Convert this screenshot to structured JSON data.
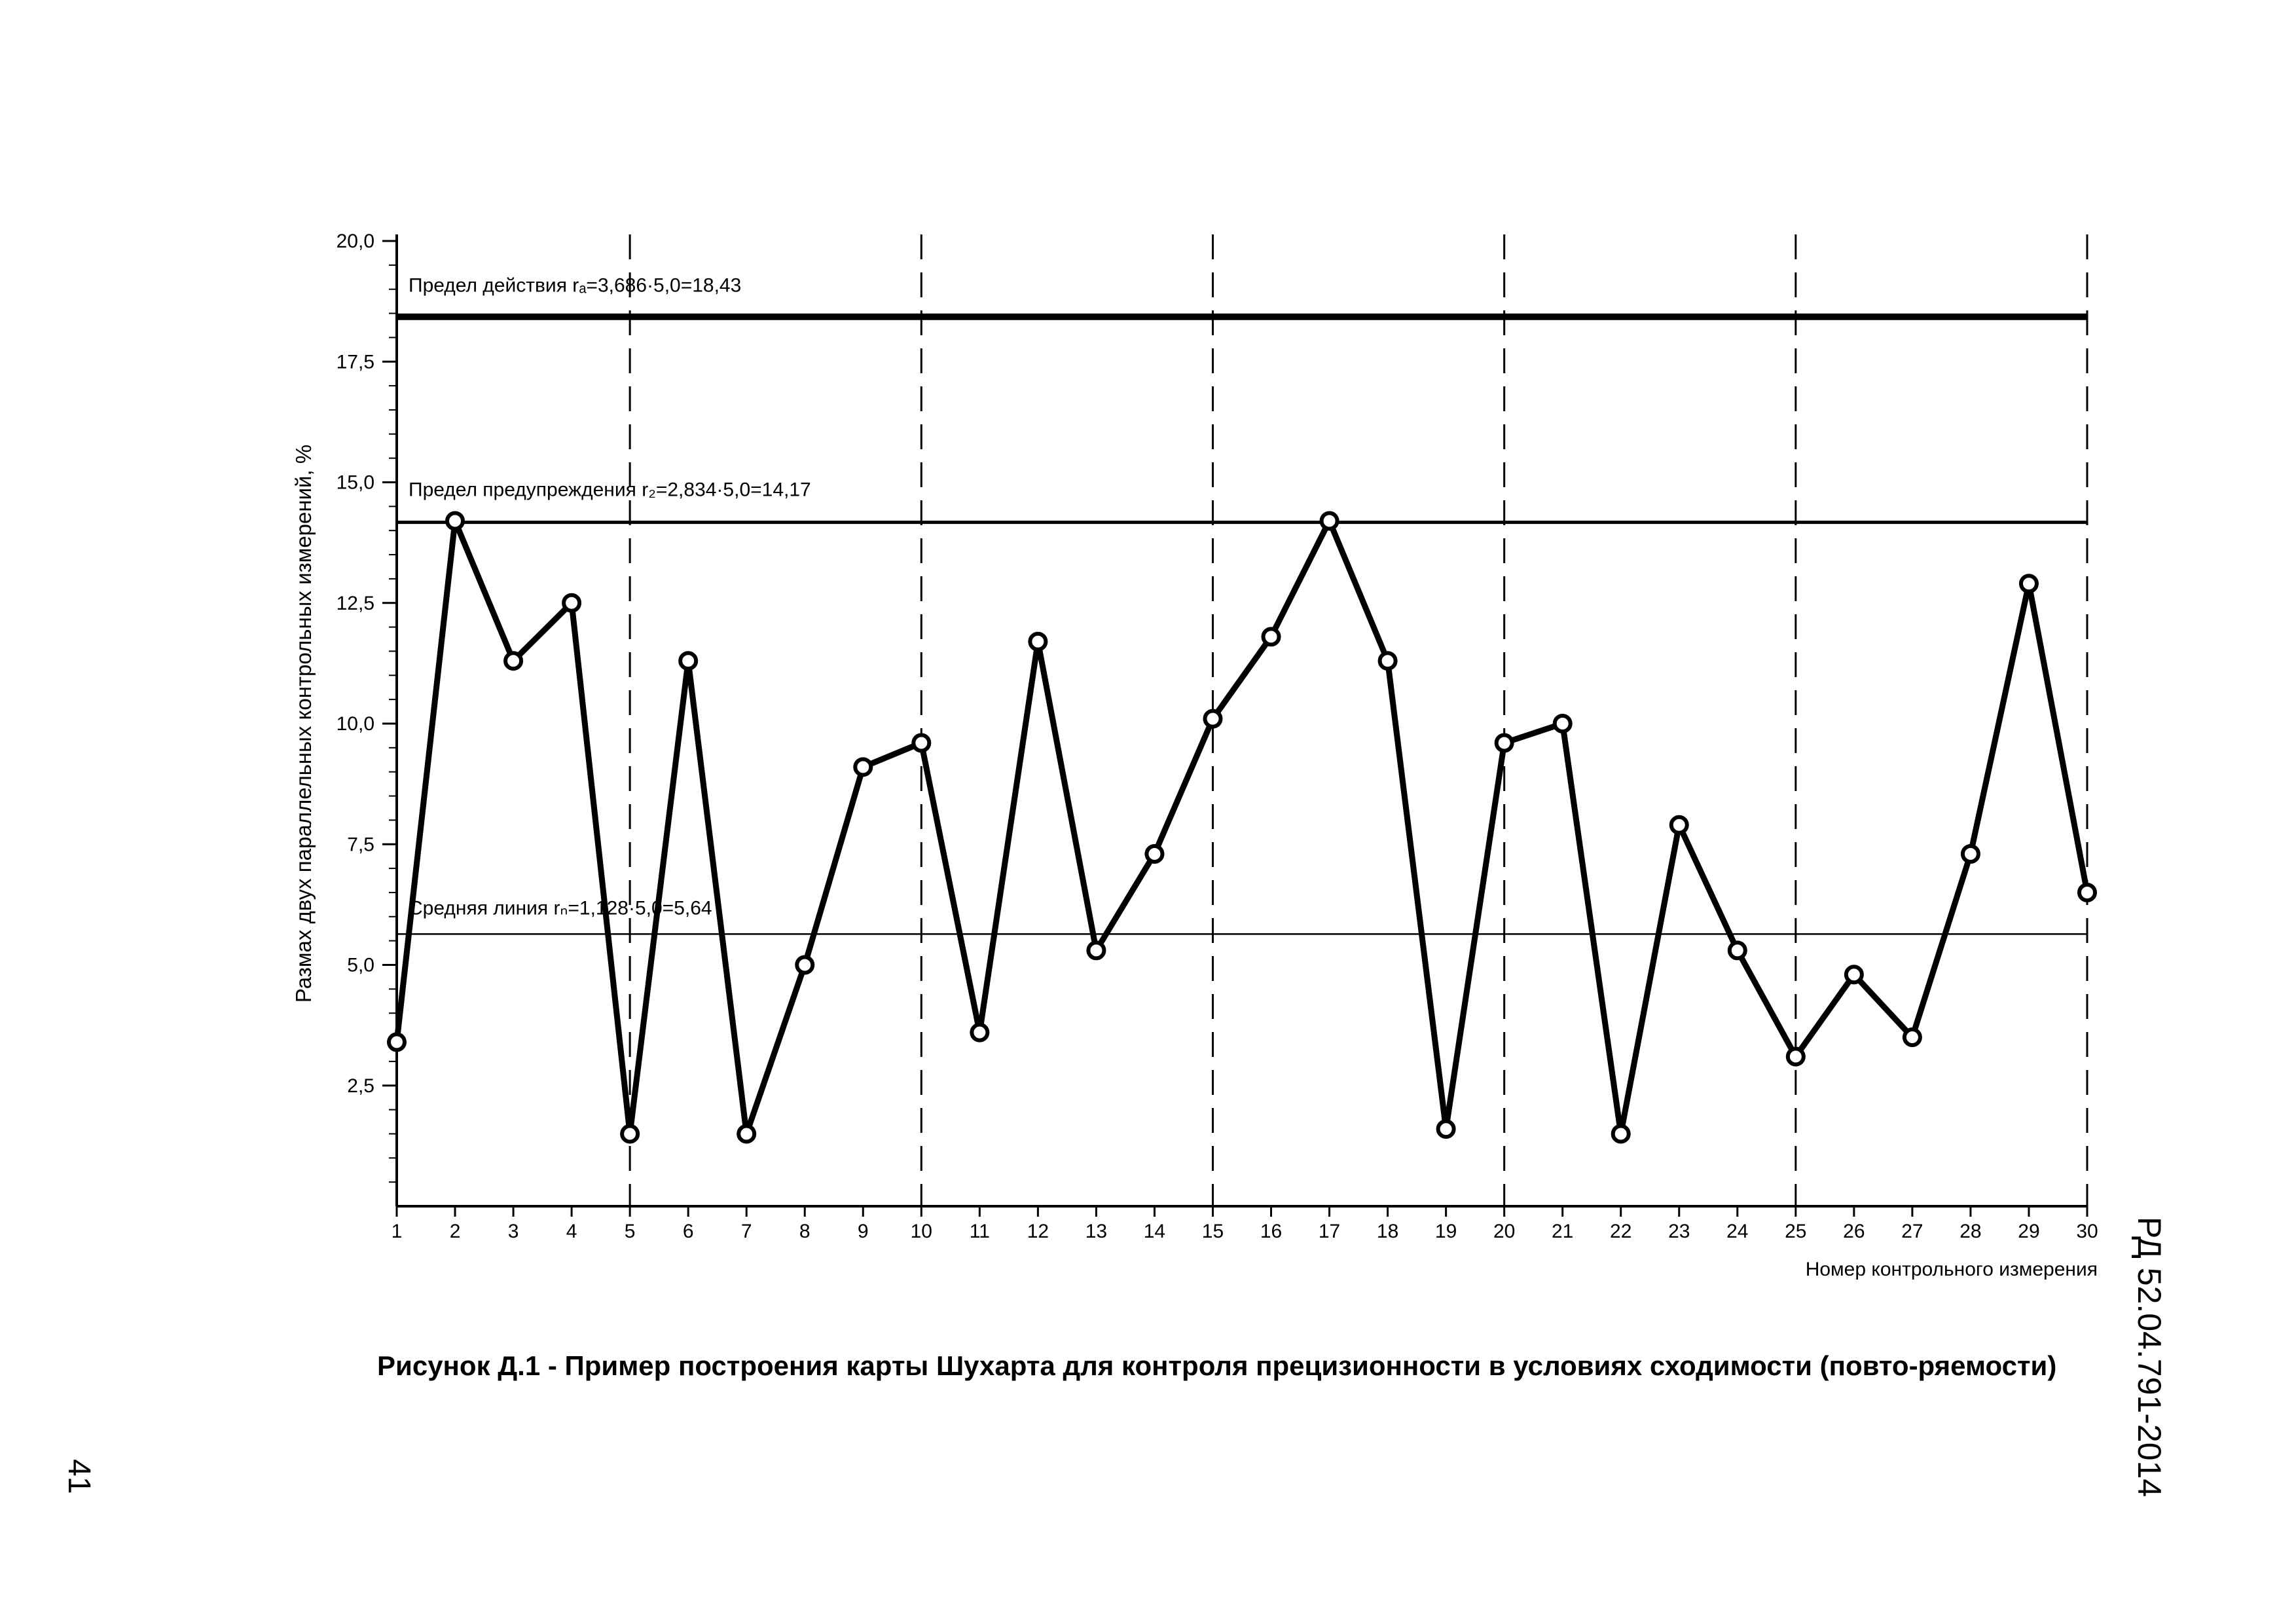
{
  "chart_data": {
    "type": "line",
    "ylabel": "Размах двух параллельных контрольных измерений, %",
    "xlabel": "Номер контрольного измерения",
    "ylim": [
      0,
      20
    ],
    "xlim": [
      1,
      30
    ],
    "y_ticks": [
      "2,5",
      "5,0",
      "7,5",
      "10,0",
      "12,5",
      "15,0",
      "17,5",
      "20,0"
    ],
    "y_tick_values": [
      2.5,
      5.0,
      7.5,
      10.0,
      12.5,
      15.0,
      17.5,
      20.0
    ],
    "x": [
      1,
      2,
      3,
      4,
      5,
      6,
      7,
      8,
      9,
      10,
      11,
      12,
      13,
      14,
      15,
      16,
      17,
      18,
      19,
      20,
      21,
      22,
      23,
      24,
      25,
      26,
      27,
      28,
      29,
      30
    ],
    "x_ticks": [
      "1",
      "2",
      "3",
      "4",
      "5",
      "6",
      "7",
      "8",
      "9",
      "10",
      "11",
      "12",
      "13",
      "14",
      "15",
      "16",
      "17",
      "18",
      "19",
      "20",
      "21",
      "22",
      "23",
      "24",
      "25",
      "26",
      "27",
      "28",
      "29",
      "30"
    ],
    "series": [
      {
        "values": [
          3.4,
          14.2,
          11.3,
          12.5,
          1.5,
          11.3,
          1.5,
          5.0,
          9.1,
          9.6,
          3.6,
          11.7,
          5.3,
          7.3,
          10.1,
          11.8,
          14.2,
          11.3,
          1.6,
          9.6,
          10.0,
          1.5,
          7.9,
          5.3,
          3.1,
          4.8,
          3.5,
          7.3,
          12.9,
          6.5
        ]
      }
    ],
    "reference_lines": [
      {
        "y": 18.43,
        "label": "Предел действия rₐ=3,686·5,0=18,43",
        "style": "thick"
      },
      {
        "y": 14.17,
        "label": "Предел предупреждения r₂=2,834·5,0=14,17",
        "style": "medium"
      },
      {
        "y": 5.64,
        "label": "Средняя линия rₙ=1,128·5,0=5,64",
        "style": "thin"
      }
    ],
    "dashed_verticals_at_x": [
      5,
      10,
      15,
      20,
      25,
      30
    ],
    "grid": false
  },
  "caption": "Рисунок  Д.1 - Пример построения  карты Шухарта для контроля прецизионности в условиях сходимости (повто-ряемости)",
  "document_code": "РД 52.04.791-2014",
  "page_number": "41"
}
